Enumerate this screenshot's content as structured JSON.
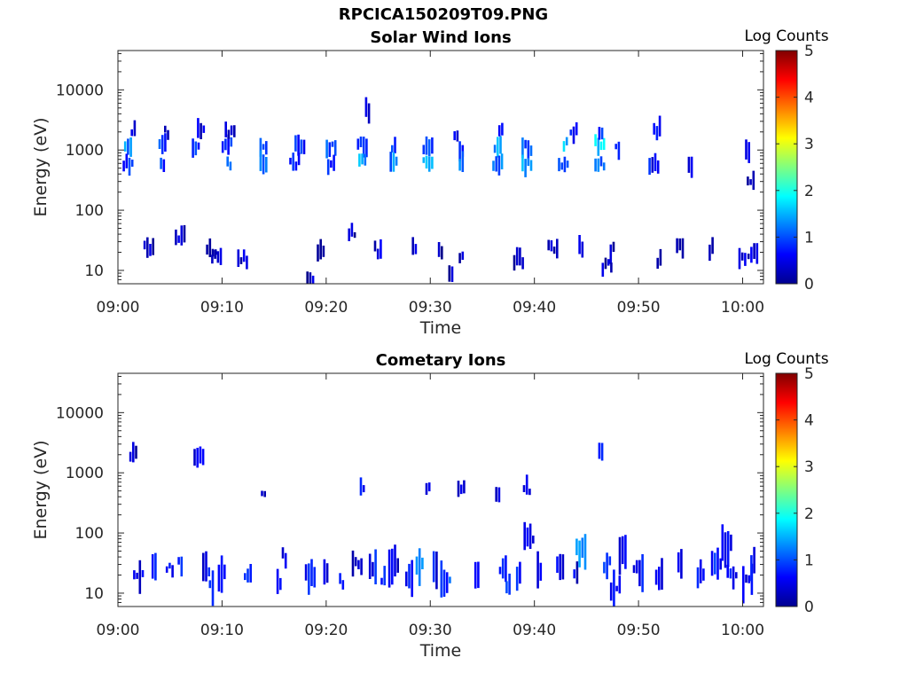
{
  "figure": {
    "filename": "RPCICA150209T09.PNG"
  },
  "chart_data": [
    {
      "type": "heatmap",
      "title": "Solar Wind Ions",
      "xlabel": "Time",
      "ylabel": "Energy (eV)",
      "x_ticks": [
        "09:00",
        "09:10",
        "09:20",
        "09:30",
        "09:40",
        "09:50",
        "10:00"
      ],
      "xlim_minutes": [
        0,
        62
      ],
      "y_scale": "log",
      "y_ticks": [
        10,
        100,
        1000,
        10000
      ],
      "y_tick_labels": [
        "10",
        "100",
        "1000",
        "10000"
      ],
      "ylim": [
        6,
        45000
      ],
      "colorbar": {
        "label": "Log Counts",
        "ticks": [
          0,
          1,
          2,
          3,
          4,
          5
        ],
        "colormap": "jet",
        "range": [
          0,
          5
        ]
      },
      "blobs": [
        [
          1,
          1200,
          1.2
        ],
        [
          1,
          600,
          0.8
        ],
        [
          4.3,
          1200,
          0.9
        ],
        [
          4.3,
          600,
          0.8
        ],
        [
          7.5,
          1200,
          0.9
        ],
        [
          10.5,
          1200,
          0.9
        ],
        [
          10.7,
          600,
          1.2
        ],
        [
          14,
          1150,
          1.0
        ],
        [
          14,
          600,
          1.3
        ],
        [
          17.5,
          1200,
          0.8
        ],
        [
          17,
          600,
          0.7
        ],
        [
          20.5,
          1150,
          0.9
        ],
        [
          20.5,
          600,
          0.8
        ],
        [
          23.5,
          1200,
          0.9
        ],
        [
          23.5,
          600,
          1.4
        ],
        [
          26.5,
          1150,
          0.9
        ],
        [
          26.5,
          600,
          1.2
        ],
        [
          29.8,
          1100,
          1.0
        ],
        [
          29.8,
          600,
          1.5
        ],
        [
          33,
          1100,
          0.8
        ],
        [
          33,
          550,
          1.1
        ],
        [
          36.5,
          1200,
          1.3
        ],
        [
          36.5,
          600,
          1.2
        ],
        [
          39.3,
          1100,
          1.0
        ],
        [
          39.3,
          550,
          1.4
        ],
        [
          43,
          1200,
          1.5
        ],
        [
          42.8,
          600,
          1.0
        ],
        [
          46.3,
          1250,
          1.6
        ],
        [
          46.3,
          600,
          1.2
        ],
        [
          48,
          1000,
          0.5
        ],
        [
          51.5,
          600,
          0.6
        ],
        [
          55,
          500,
          0.6
        ],
        [
          60.5,
          1000,
          0.4
        ],
        [
          60.8,
          330,
          0.4
        ],
        [
          1.5,
          2000,
          0.5
        ],
        [
          4.7,
          2000,
          0.5
        ],
        [
          8,
          2000,
          0.5
        ],
        [
          10.8,
          2000,
          0.5
        ],
        [
          24,
          4500,
          0.5
        ],
        [
          32.5,
          2000,
          0.5
        ],
        [
          36.8,
          2200,
          0.6
        ],
        [
          43.8,
          2000,
          0.6
        ],
        [
          46.4,
          2100,
          0.7
        ],
        [
          51.8,
          2200,
          0.5
        ],
        [
          9,
          22,
          0.4
        ],
        [
          9.5,
          18,
          0.4
        ],
        [
          12,
          15,
          0.3
        ],
        [
          19.5,
          20,
          0.4
        ],
        [
          22.5,
          40,
          0.3
        ],
        [
          25,
          22,
          0.4
        ],
        [
          28.5,
          25,
          0.3
        ],
        [
          31,
          20,
          0.3
        ],
        [
          33,
          18,
          0.3
        ],
        [
          38.5,
          15,
          0.3
        ],
        [
          44.5,
          25,
          0.3
        ],
        [
          47.5,
          22,
          0.3
        ],
        [
          52,
          15,
          0.3
        ],
        [
          54,
          25,
          0.3
        ],
        [
          57,
          22,
          0.3
        ],
        [
          60,
          18,
          0.3
        ],
        [
          61,
          20,
          0.4
        ],
        [
          3,
          25,
          0.3
        ],
        [
          6,
          35,
          0.3
        ],
        [
          18.5,
          7,
          0.3
        ],
        [
          32,
          10,
          0.3
        ],
        [
          41.8,
          25,
          0.3
        ],
        [
          47,
          12,
          0.3
        ]
      ]
    },
    {
      "type": "heatmap",
      "title": "Cometary Ions",
      "xlabel": "Time",
      "ylabel": "Energy (eV)",
      "x_ticks": [
        "09:00",
        "09:10",
        "09:20",
        "09:30",
        "09:40",
        "09:50",
        "10:00"
      ],
      "xlim_minutes": [
        0,
        62
      ],
      "y_scale": "log",
      "y_ticks": [
        10,
        100,
        1000,
        10000
      ],
      "y_tick_labels": [
        "10",
        "100",
        "1000",
        "10000"
      ],
      "ylim": [
        6,
        45000
      ],
      "colorbar": {
        "label": "Log Counts",
        "ticks": [
          0,
          1,
          2,
          3,
          4,
          5
        ],
        "colormap": "jet",
        "range": [
          0,
          5
        ]
      },
      "blobs": [
        [
          1.5,
          2000,
          0.4
        ],
        [
          7.8,
          2000,
          0.4
        ],
        [
          14,
          450,
          0.4
        ],
        [
          23.5,
          550,
          0.6
        ],
        [
          29.8,
          580,
          0.7
        ],
        [
          33,
          550,
          0.5
        ],
        [
          36.5,
          500,
          0.5
        ],
        [
          39.3,
          550,
          0.7
        ],
        [
          46.4,
          2000,
          0.7
        ],
        [
          2,
          20,
          0.5
        ],
        [
          3.5,
          30,
          0.6
        ],
        [
          5,
          25,
          0.8
        ],
        [
          6,
          30,
          0.7
        ],
        [
          8.5,
          25,
          0.6
        ],
        [
          9,
          12,
          1.0
        ],
        [
          10,
          20,
          0.7
        ],
        [
          12.5,
          20,
          0.6
        ],
        [
          15.5,
          15,
          0.5
        ],
        [
          16,
          40,
          0.4
        ],
        [
          18.5,
          20,
          0.7
        ],
        [
          20,
          25,
          0.5
        ],
        [
          21.5,
          15,
          0.6
        ],
        [
          23,
          30,
          0.5
        ],
        [
          24.5,
          25,
          0.7
        ],
        [
          25.5,
          18,
          0.6
        ],
        [
          26.5,
          30,
          0.5
        ],
        [
          28,
          20,
          0.7
        ],
        [
          29,
          30,
          1.3
        ],
        [
          30.5,
          25,
          0.6
        ],
        [
          31.5,
          15,
          0.9
        ],
        [
          34.5,
          20,
          0.5
        ],
        [
          37,
          25,
          0.6
        ],
        [
          37.5,
          12,
          0.8
        ],
        [
          38.5,
          20,
          0.7
        ],
        [
          39.5,
          90,
          0.5
        ],
        [
          40.5,
          25,
          0.6
        ],
        [
          42.5,
          30,
          0.5
        ],
        [
          44,
          20,
          0.5
        ],
        [
          44.5,
          50,
          1.2
        ],
        [
          47,
          30,
          1.0
        ],
        [
          47.8,
          12,
          0.8
        ],
        [
          48.5,
          45,
          0.5
        ],
        [
          50,
          25,
          0.6
        ],
        [
          52,
          20,
          0.6
        ],
        [
          54,
          35,
          0.7
        ],
        [
          56,
          20,
          0.6
        ],
        [
          57.5,
          30,
          0.7
        ],
        [
          58.5,
          60,
          0.6
        ],
        [
          59,
          20,
          0.6
        ],
        [
          60.5,
          15,
          0.6
        ],
        [
          61,
          30,
          0.6
        ]
      ]
    }
  ]
}
